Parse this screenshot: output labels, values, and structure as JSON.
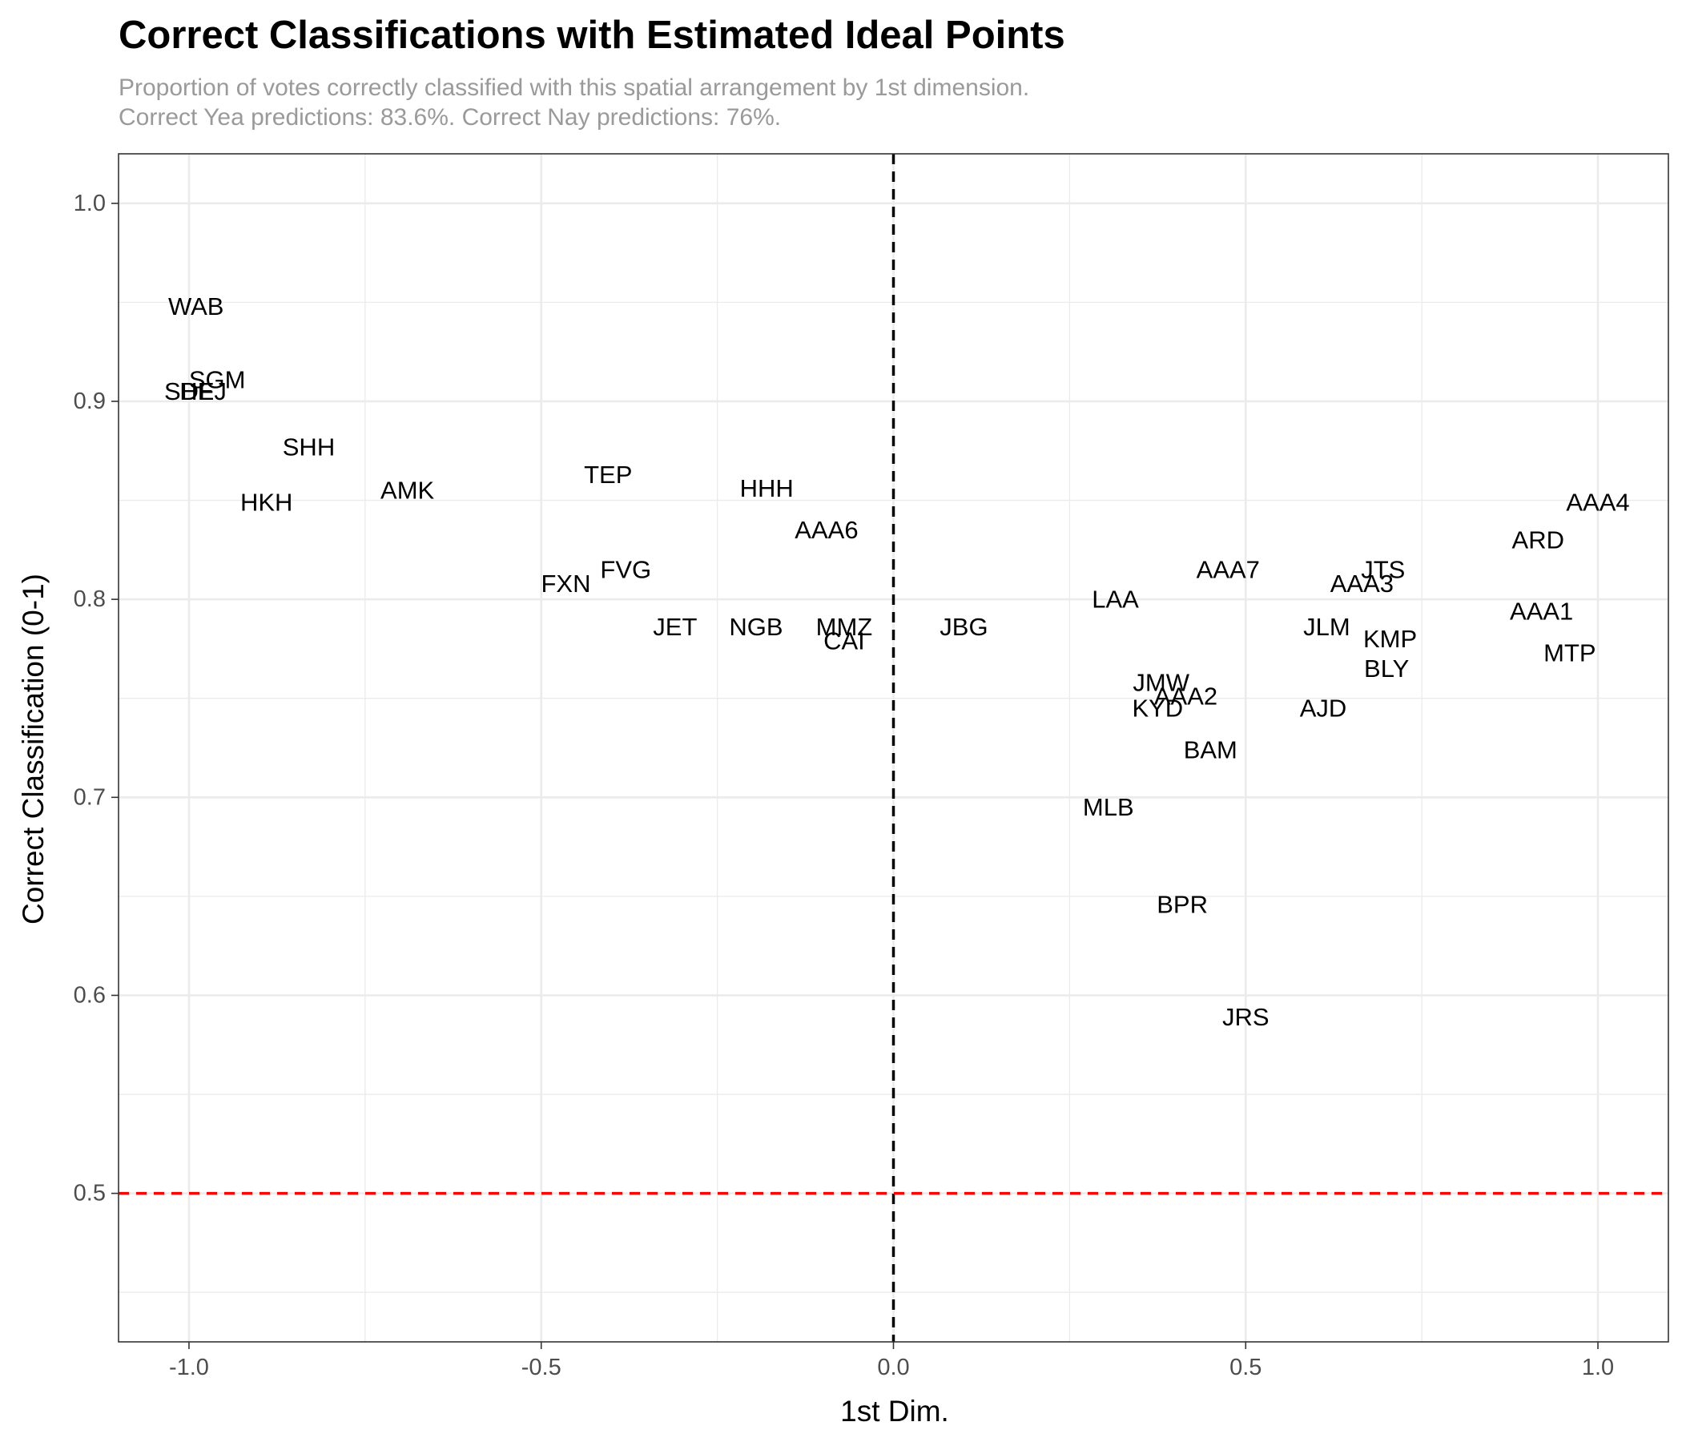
{
  "chart_data": {
    "type": "scatter",
    "title": "Correct Classifications with Estimated Ideal Points",
    "subtitle_lines": [
      "Proportion of votes correctly classified with this spatial arrangement by 1st dimension.",
      "Correct Yea predictions: 83.6%. Correct Nay predictions: 76%."
    ],
    "xlabel": "1st Dim.",
    "ylabel": "Correct Classification (0-1)",
    "xlim": [
      -1.1,
      1.1
    ],
    "ylim": [
      0.425,
      1.025
    ],
    "x_ticks": [
      -1.0,
      -0.5,
      0.0,
      0.5,
      1.0
    ],
    "x_tick_labels": [
      "-1.0",
      "-0.5",
      "0.0",
      "0.5",
      "1.0"
    ],
    "y_ticks": [
      0.5,
      0.6,
      0.7,
      0.8,
      0.9,
      1.0
    ],
    "y_tick_labels": [
      "0.5",
      "0.6",
      "0.7",
      "0.8",
      "0.9",
      "1.0"
    ],
    "grid": true,
    "reference_lines": [
      {
        "orientation": "vertical",
        "value": 0,
        "color": "#000000",
        "style": "dashed"
      },
      {
        "orientation": "horizontal",
        "value": 0.5,
        "color": "#ff0000",
        "style": "dashed"
      }
    ],
    "points": [
      {
        "label": "WAB",
        "x": -0.99,
        "y": 0.948
      },
      {
        "label": "SGM",
        "x": -0.96,
        "y": 0.911
      },
      {
        "label": "SDF",
        "x": -1.0,
        "y": 0.905
      },
      {
        "label": "HEJ",
        "x": -0.98,
        "y": 0.905
      },
      {
        "label": "SHH",
        "x": -0.83,
        "y": 0.877
      },
      {
        "label": "AMK",
        "x": -0.69,
        "y": 0.855
      },
      {
        "label": "HKH",
        "x": -0.89,
        "y": 0.849
      },
      {
        "label": "TEP",
        "x": -0.405,
        "y": 0.863
      },
      {
        "label": "HHH",
        "x": -0.18,
        "y": 0.856
      },
      {
        "label": "AAA6",
        "x": -0.095,
        "y": 0.835
      },
      {
        "label": "FVG",
        "x": -0.38,
        "y": 0.815
      },
      {
        "label": "FXN",
        "x": -0.465,
        "y": 0.808
      },
      {
        "label": "JET",
        "x": -0.31,
        "y": 0.786
      },
      {
        "label": "NGB",
        "x": -0.195,
        "y": 0.786
      },
      {
        "label": "MMZ",
        "x": -0.07,
        "y": 0.786
      },
      {
        "label": "CAI",
        "x": -0.07,
        "y": 0.779
      },
      {
        "label": "JBG",
        "x": 0.1,
        "y": 0.786
      },
      {
        "label": "LAA",
        "x": 0.315,
        "y": 0.8
      },
      {
        "label": "AAA7",
        "x": 0.475,
        "y": 0.815
      },
      {
        "label": "JTS",
        "x": 0.695,
        "y": 0.815
      },
      {
        "label": "AAA3",
        "x": 0.665,
        "y": 0.808
      },
      {
        "label": "JLM",
        "x": 0.615,
        "y": 0.786
      },
      {
        "label": "KMP",
        "x": 0.705,
        "y": 0.78
      },
      {
        "label": "BLY",
        "x": 0.7,
        "y": 0.765
      },
      {
        "label": "AAA4",
        "x": 1.0,
        "y": 0.849
      },
      {
        "label": "ARD",
        "x": 0.915,
        "y": 0.83
      },
      {
        "label": "AAA1",
        "x": 0.92,
        "y": 0.794
      },
      {
        "label": "MTP",
        "x": 0.96,
        "y": 0.773
      },
      {
        "label": "JMW",
        "x": 0.38,
        "y": 0.758
      },
      {
        "label": "AAA2",
        "x": 0.415,
        "y": 0.751
      },
      {
        "label": "KYD",
        "x": 0.375,
        "y": 0.745
      },
      {
        "label": "AJD",
        "x": 0.61,
        "y": 0.745
      },
      {
        "label": "BAM",
        "x": 0.45,
        "y": 0.724
      },
      {
        "label": "MLB",
        "x": 0.305,
        "y": 0.695
      },
      {
        "label": "BPR",
        "x": 0.41,
        "y": 0.646
      },
      {
        "label": "JRS",
        "x": 0.5,
        "y": 0.589
      }
    ]
  }
}
